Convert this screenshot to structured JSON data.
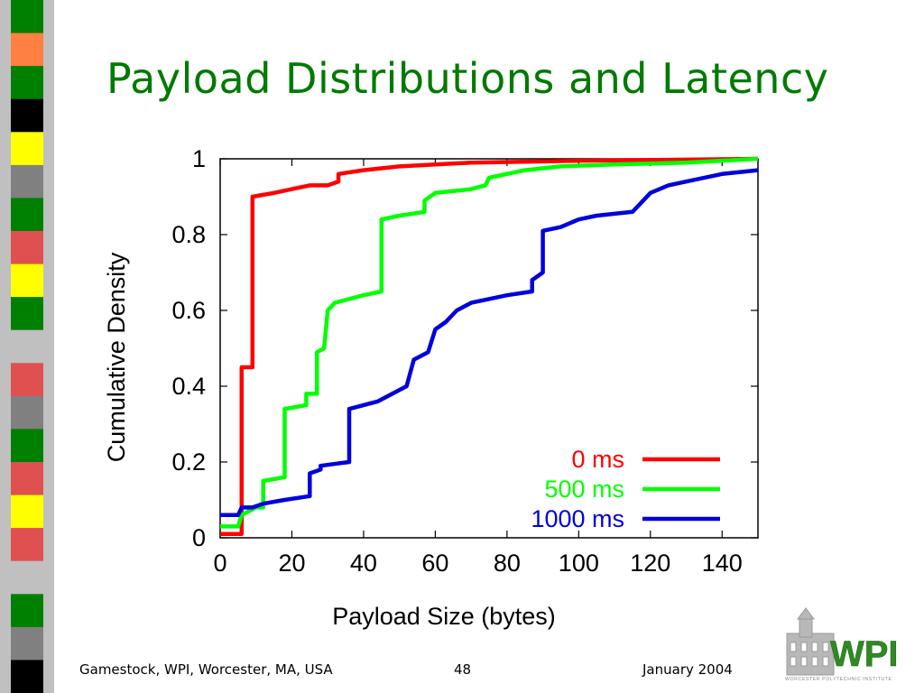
{
  "slide": {
    "title": "Payload Distributions and Latency",
    "footer_left": "Gamestock, WPI, Worcester, MA, USA",
    "page_number": "48",
    "footer_right": "January 2004",
    "logo_text": "WPI",
    "logo_subtext": "WORCESTER POLYTECHNIC INSTITUTE"
  },
  "colors": {
    "title": "#007a00",
    "stripe_palette": [
      "#008000",
      "#ff8040",
      "#000000",
      "#ffff00",
      "#e05050",
      "#c0c0c0",
      "#808080"
    ]
  },
  "chart_data": {
    "type": "line",
    "title": "",
    "xlabel": "Payload Size (bytes)",
    "ylabel": "Cumulative Density",
    "xlim": [
      0,
      150
    ],
    "ylim": [
      0,
      1
    ],
    "x_ticks": [
      "0",
      "20",
      "40",
      "60",
      "80",
      "100",
      "120",
      "140"
    ],
    "x_tick_values": [
      0,
      20,
      40,
      60,
      80,
      100,
      120,
      140
    ],
    "y_ticks": [
      "0",
      "0.2",
      "0.4",
      "0.6",
      "0.8",
      "1"
    ],
    "y_tick_values": [
      0,
      0.2,
      0.4,
      0.6,
      0.8,
      1
    ],
    "grid": false,
    "legend_position": "bottom-right",
    "series": [
      {
        "name": "0 ms",
        "color": "#ff0000",
        "points": [
          [
            0,
            0.01
          ],
          [
            6,
            0.01
          ],
          [
            6,
            0.45
          ],
          [
            9,
            0.45
          ],
          [
            9,
            0.9
          ],
          [
            15,
            0.91
          ],
          [
            20,
            0.92
          ],
          [
            25,
            0.93
          ],
          [
            30,
            0.93
          ],
          [
            33,
            0.94
          ],
          [
            33,
            0.96
          ],
          [
            40,
            0.97
          ],
          [
            50,
            0.98
          ],
          [
            70,
            0.99
          ],
          [
            100,
            0.995
          ],
          [
            150,
            1.0
          ]
        ]
      },
      {
        "name": "500 ms",
        "color": "#00ff00",
        "points": [
          [
            0,
            0.03
          ],
          [
            5,
            0.03
          ],
          [
            6,
            0.06
          ],
          [
            10,
            0.08
          ],
          [
            12,
            0.08
          ],
          [
            12,
            0.15
          ],
          [
            18,
            0.16
          ],
          [
            18,
            0.34
          ],
          [
            24,
            0.35
          ],
          [
            24,
            0.38
          ],
          [
            27,
            0.38
          ],
          [
            27,
            0.49
          ],
          [
            29,
            0.5
          ],
          [
            30,
            0.6
          ],
          [
            32,
            0.62
          ],
          [
            40,
            0.64
          ],
          [
            45,
            0.65
          ],
          [
            45,
            0.84
          ],
          [
            50,
            0.85
          ],
          [
            57,
            0.86
          ],
          [
            57,
            0.89
          ],
          [
            60,
            0.91
          ],
          [
            70,
            0.92
          ],
          [
            74,
            0.93
          ],
          [
            75,
            0.95
          ],
          [
            85,
            0.97
          ],
          [
            95,
            0.98
          ],
          [
            110,
            0.985
          ],
          [
            130,
            0.99
          ],
          [
            150,
            1.0
          ]
        ]
      },
      {
        "name": "1000 ms",
        "color": "#0000dd",
        "points": [
          [
            0,
            0.06
          ],
          [
            5,
            0.06
          ],
          [
            6,
            0.08
          ],
          [
            9,
            0.08
          ],
          [
            12,
            0.09
          ],
          [
            18,
            0.1
          ],
          [
            25,
            0.11
          ],
          [
            25,
            0.17
          ],
          [
            28,
            0.18
          ],
          [
            28,
            0.19
          ],
          [
            36,
            0.2
          ],
          [
            36,
            0.34
          ],
          [
            44,
            0.36
          ],
          [
            48,
            0.38
          ],
          [
            52,
            0.4
          ],
          [
            54,
            0.47
          ],
          [
            58,
            0.49
          ],
          [
            60,
            0.55
          ],
          [
            63,
            0.57
          ],
          [
            66,
            0.6
          ],
          [
            70,
            0.62
          ],
          [
            80,
            0.64
          ],
          [
            87,
            0.65
          ],
          [
            87,
            0.68
          ],
          [
            90,
            0.7
          ],
          [
            90,
            0.81
          ],
          [
            95,
            0.82
          ],
          [
            100,
            0.84
          ],
          [
            105,
            0.85
          ],
          [
            115,
            0.86
          ],
          [
            117,
            0.88
          ],
          [
            120,
            0.91
          ],
          [
            125,
            0.93
          ],
          [
            130,
            0.94
          ],
          [
            140,
            0.96
          ],
          [
            150,
            0.97
          ]
        ]
      }
    ]
  }
}
